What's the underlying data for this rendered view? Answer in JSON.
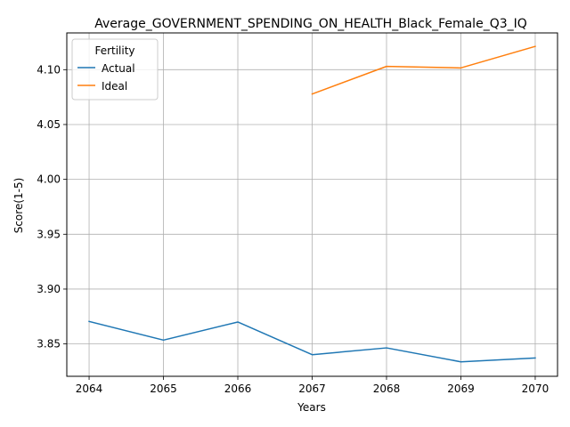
{
  "chart_data": {
    "type": "line",
    "title": "Average_GOVERNMENT_SPENDING_ON_HEALTH_Black_Female_Q3_IQ",
    "xlabel": "Years",
    "ylabel": "Score(1-5)",
    "xlim": [
      2063.7,
      2070.3
    ],
    "ylim": [
      3.8205,
      4.1335
    ],
    "x_ticks": [
      2064,
      2065,
      2066,
      2067,
      2068,
      2069,
      2070
    ],
    "y_ticks": [
      3.85,
      3.9,
      3.95,
      4.0,
      4.05,
      4.1
    ],
    "y_tick_labels": [
      "3.85",
      "3.90",
      "3.95",
      "4.00",
      "4.05",
      "4.10"
    ],
    "grid": true,
    "legend": {
      "title": "Fertility",
      "placement": "top-left"
    },
    "series": [
      {
        "name": "Actual",
        "color": "#1f77b4",
        "x": [
          2064,
          2065,
          2066,
          2067,
          2068,
          2069,
          2070
        ],
        "y": [
          3.8705,
          3.8535,
          3.87,
          3.8402,
          3.8464,
          3.8337,
          3.8372
        ]
      },
      {
        "name": "Ideal",
        "color": "#ff7f0e",
        "x": [
          2067,
          2068,
          2069,
          2070
        ],
        "y": [
          4.0778,
          4.103,
          4.1016,
          4.1212
        ]
      }
    ]
  }
}
